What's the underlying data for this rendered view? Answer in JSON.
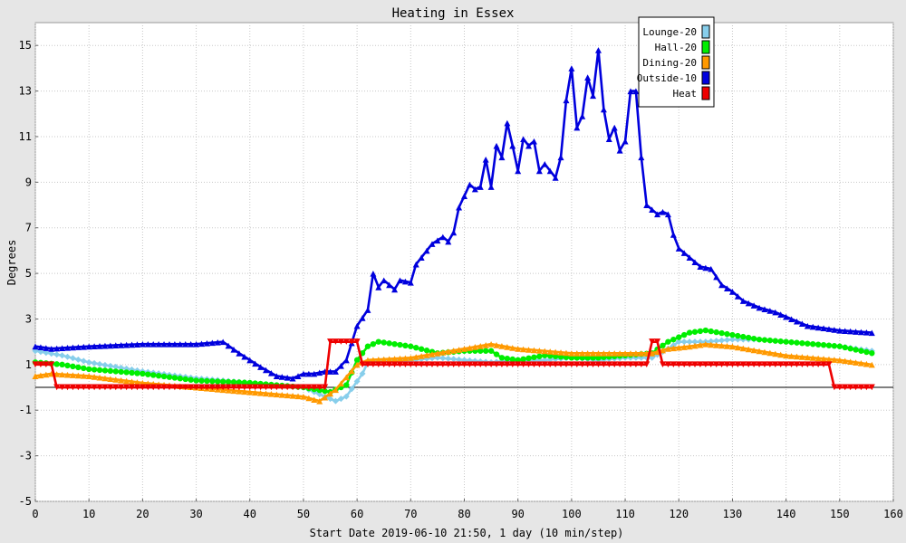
{
  "chart_data": {
    "type": "line",
    "title": "Heating in Essex",
    "xlabel": "Start Date 2019-06-10 21:50, 1 day (10 min/step)",
    "ylabel": "Degrees",
    "xlim": [
      0,
      160
    ],
    "ylim": [
      -5,
      16
    ],
    "x_ticks": [
      0,
      10,
      20,
      30,
      40,
      50,
      60,
      70,
      80,
      90,
      100,
      110,
      120,
      130,
      140,
      150,
      160
    ],
    "y_ticks": [
      -5,
      -3,
      -1,
      1,
      3,
      5,
      7,
      9,
      11,
      13,
      15
    ],
    "grid": true,
    "legend_position": "top-right",
    "background": "#e6e6e6",
    "plot_background": "#ffffff",
    "series": [
      {
        "name": "Lounge-20",
        "color": "#87ceeb",
        "marker": "diamond",
        "points": [
          [
            0,
            1.6
          ],
          [
            5,
            1.4
          ],
          [
            10,
            1.1
          ],
          [
            20,
            0.7
          ],
          [
            30,
            0.4
          ],
          [
            40,
            0.2
          ],
          [
            50,
            0.0
          ],
          [
            54,
            -0.4
          ],
          [
            56,
            -0.6
          ],
          [
            58,
            -0.4
          ],
          [
            61,
            0.6
          ],
          [
            62,
            1.1
          ],
          [
            65,
            1.2
          ],
          [
            70,
            1.2
          ],
          [
            75,
            1.3
          ],
          [
            80,
            1.2
          ],
          [
            85,
            1.1
          ],
          [
            90,
            1.2
          ],
          [
            95,
            1.2
          ],
          [
            100,
            1.3
          ],
          [
            105,
            1.2
          ],
          [
            110,
            1.3
          ],
          [
            115,
            1.3
          ],
          [
            118,
            1.7
          ],
          [
            120,
            2.0
          ],
          [
            125,
            2.0
          ],
          [
            130,
            2.1
          ],
          [
            135,
            2.1
          ],
          [
            140,
            2.0
          ],
          [
            145,
            1.9
          ],
          [
            150,
            1.8
          ],
          [
            156,
            1.6
          ]
        ]
      },
      {
        "name": "Hall-20",
        "color": "#00ee00",
        "marker": "circle",
        "points": [
          [
            0,
            1.1
          ],
          [
            5,
            1.0
          ],
          [
            10,
            0.8
          ],
          [
            20,
            0.6
          ],
          [
            30,
            0.3
          ],
          [
            40,
            0.2
          ],
          [
            50,
            0.0
          ],
          [
            55,
            -0.2
          ],
          [
            58,
            0.1
          ],
          [
            60,
            1.2
          ],
          [
            62,
            1.8
          ],
          [
            64,
            2.0
          ],
          [
            70,
            1.8
          ],
          [
            75,
            1.5
          ],
          [
            80,
            1.6
          ],
          [
            85,
            1.6
          ],
          [
            87,
            1.3
          ],
          [
            90,
            1.2
          ],
          [
            95,
            1.4
          ],
          [
            100,
            1.3
          ],
          [
            105,
            1.3
          ],
          [
            110,
            1.4
          ],
          [
            115,
            1.5
          ],
          [
            118,
            2.0
          ],
          [
            122,
            2.4
          ],
          [
            125,
            2.5
          ],
          [
            130,
            2.3
          ],
          [
            135,
            2.1
          ],
          [
            140,
            2.0
          ],
          [
            145,
            1.9
          ],
          [
            150,
            1.8
          ],
          [
            156,
            1.5
          ]
        ]
      },
      {
        "name": "Dining-20",
        "color": "#ff9900",
        "marker": "triangle",
        "points": [
          [
            0,
            0.5
          ],
          [
            3,
            0.6
          ],
          [
            10,
            0.5
          ],
          [
            20,
            0.2
          ],
          [
            30,
            0.0
          ],
          [
            40,
            -0.2
          ],
          [
            50,
            -0.4
          ],
          [
            53,
            -0.6
          ],
          [
            56,
            -0.1
          ],
          [
            60,
            1.0
          ],
          [
            62,
            1.2
          ],
          [
            70,
            1.3
          ],
          [
            75,
            1.5
          ],
          [
            80,
            1.7
          ],
          [
            85,
            1.9
          ],
          [
            90,
            1.7
          ],
          [
            95,
            1.6
          ],
          [
            100,
            1.5
          ],
          [
            105,
            1.5
          ],
          [
            110,
            1.5
          ],
          [
            115,
            1.5
          ],
          [
            118,
            1.7
          ],
          [
            122,
            1.8
          ],
          [
            125,
            1.9
          ],
          [
            130,
            1.8
          ],
          [
            135,
            1.6
          ],
          [
            140,
            1.4
          ],
          [
            145,
            1.3
          ],
          [
            150,
            1.2
          ],
          [
            156,
            1.0
          ]
        ]
      },
      {
        "name": "Outside-10",
        "color": "#0000dd",
        "marker": "triangle",
        "points": [
          [
            0,
            1.8
          ],
          [
            3,
            1.7
          ],
          [
            10,
            1.8
          ],
          [
            20,
            1.9
          ],
          [
            30,
            1.9
          ],
          [
            35,
            2.0
          ],
          [
            38,
            1.5
          ],
          [
            42,
            0.9
          ],
          [
            45,
            0.5
          ],
          [
            48,
            0.4
          ],
          [
            50,
            0.6
          ],
          [
            52,
            0.6
          ],
          [
            54,
            0.7
          ],
          [
            56,
            0.7
          ],
          [
            58,
            1.2
          ],
          [
            60,
            2.7
          ],
          [
            62,
            3.4
          ],
          [
            63,
            5.0
          ],
          [
            64,
            4.4
          ],
          [
            65,
            4.7
          ],
          [
            67,
            4.3
          ],
          [
            68,
            4.7
          ],
          [
            70,
            4.6
          ],
          [
            71,
            5.4
          ],
          [
            74,
            6.3
          ],
          [
            76,
            6.6
          ],
          [
            77,
            6.4
          ],
          [
            78,
            6.8
          ],
          [
            79,
            7.9
          ],
          [
            81,
            8.9
          ],
          [
            82,
            8.7
          ],
          [
            83,
            8.8
          ],
          [
            84,
            10.0
          ],
          [
            85,
            8.8
          ],
          [
            86,
            10.6
          ],
          [
            87,
            10.1
          ],
          [
            88,
            11.6
          ],
          [
            89,
            10.6
          ],
          [
            90,
            9.5
          ],
          [
            91,
            10.9
          ],
          [
            92,
            10.6
          ],
          [
            93,
            10.8
          ],
          [
            94,
            9.5
          ],
          [
            95,
            9.8
          ],
          [
            96,
            9.5
          ],
          [
            97,
            9.2
          ],
          [
            98,
            10.1
          ],
          [
            99,
            12.6
          ],
          [
            100,
            14.0
          ],
          [
            101,
            11.4
          ],
          [
            102,
            11.9
          ],
          [
            103,
            13.6
          ],
          [
            104,
            12.8
          ],
          [
            105,
            14.8
          ],
          [
            106,
            12.2
          ],
          [
            107,
            10.9
          ],
          [
            108,
            11.4
          ],
          [
            109,
            10.4
          ],
          [
            110,
            10.8
          ],
          [
            111,
            13.0
          ],
          [
            112,
            13.0
          ],
          [
            113,
            10.1
          ],
          [
            114,
            8.0
          ],
          [
            115,
            7.8
          ],
          [
            116,
            7.6
          ],
          [
            117,
            7.7
          ],
          [
            118,
            7.6
          ],
          [
            119,
            6.7
          ],
          [
            120,
            6.1
          ],
          [
            122,
            5.7
          ],
          [
            124,
            5.3
          ],
          [
            126,
            5.2
          ],
          [
            128,
            4.5
          ],
          [
            130,
            4.2
          ],
          [
            132,
            3.8
          ],
          [
            135,
            3.5
          ],
          [
            138,
            3.3
          ],
          [
            141,
            3.0
          ],
          [
            144,
            2.7
          ],
          [
            147,
            2.6
          ],
          [
            150,
            2.5
          ],
          [
            156,
            2.4
          ]
        ]
      },
      {
        "name": "Heat",
        "color": "#ee0000",
        "marker": "triangle-down",
        "points": [
          [
            0,
            1.0
          ],
          [
            3,
            1.0
          ],
          [
            4,
            0.0
          ],
          [
            54,
            0.0
          ],
          [
            55,
            2.0
          ],
          [
            60,
            2.0
          ],
          [
            61,
            1.0
          ],
          [
            114,
            1.0
          ],
          [
            115,
            2.0
          ],
          [
            116,
            2.0
          ],
          [
            117,
            1.0
          ],
          [
            148,
            1.0
          ],
          [
            149,
            0.0
          ],
          [
            156,
            0.0
          ]
        ]
      }
    ]
  }
}
